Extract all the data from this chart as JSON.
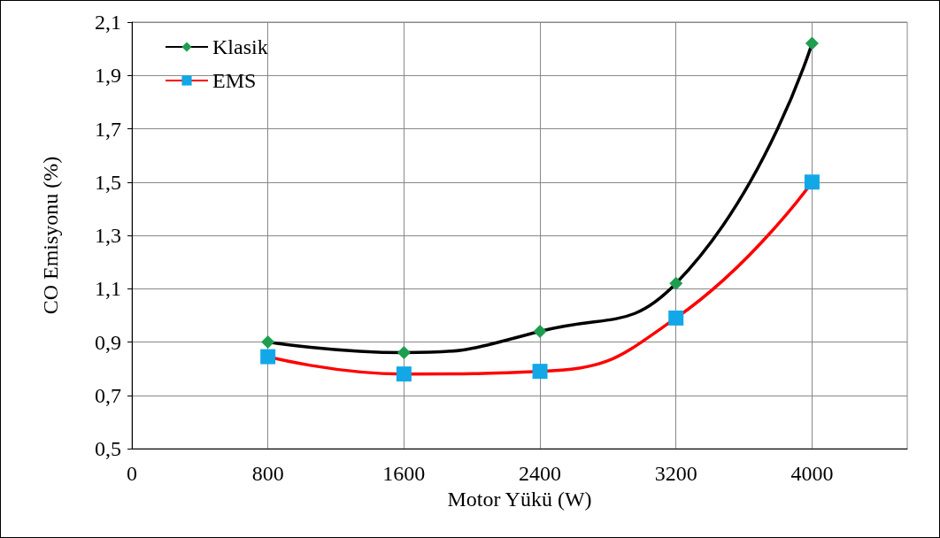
{
  "chart_data": {
    "type": "line",
    "xlabel": "Motor Yükü (W)",
    "ylabel": "CO Emisyonu (%)",
    "x": [
      800,
      1600,
      2400,
      3200,
      4000
    ],
    "series": [
      {
        "name": "Klasik",
        "color": "#000000",
        "colors": [
          "#1e9e50",
          "#1e9e50",
          "#1e9e50",
          "#1e9e50",
          "#1e9e50"
        ],
        "marker": "diamond",
        "values": [
          0.9,
          0.86,
          0.94,
          1.12,
          2.02
        ]
      },
      {
        "name": "EMS",
        "color": "#ff0000",
        "colors": [
          "#12a8e8",
          "#12a8e8",
          "#12a8e8",
          "#12a8e8",
          "#12a8e8"
        ],
        "marker": "square",
        "values": [
          0.845,
          0.78,
          0.79,
          0.99,
          1.5
        ]
      }
    ],
    "xlim": [
      0,
      4560
    ],
    "xticks": [
      0,
      800,
      1600,
      2400,
      3200,
      4000
    ],
    "ylim": [
      0.5,
      2.1
    ],
    "yticks": [
      {
        "value": 0.5,
        "label": "0,5"
      },
      {
        "value": 0.7,
        "label": "0,7"
      },
      {
        "value": 0.9,
        "label": "0,9"
      },
      {
        "value": 1.1,
        "label": "1,1"
      },
      {
        "value": 1.3,
        "label": "1,3"
      },
      {
        "value": 1.5,
        "label": "1,5"
      },
      {
        "value": 1.7,
        "label": "1,7"
      },
      {
        "value": 1.9,
        "label": "1,9"
      },
      {
        "value": 2.1,
        "label": "2,1"
      }
    ],
    "grid": true,
    "legend": "top left"
  }
}
